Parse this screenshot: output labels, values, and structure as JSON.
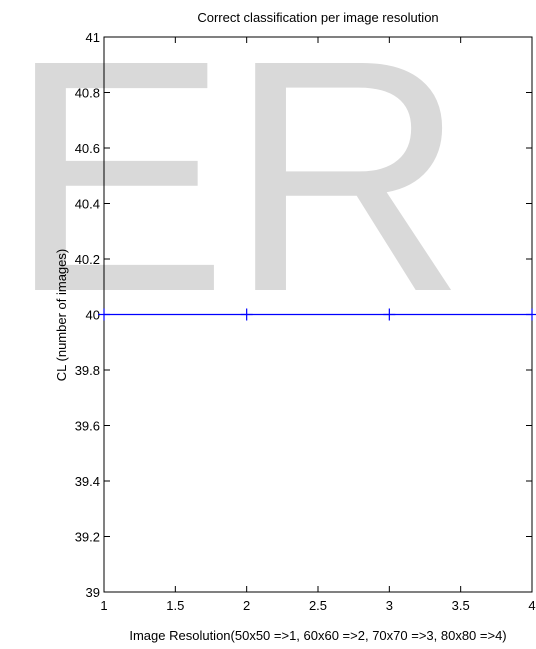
{
  "watermark": "ER",
  "chart_data": {
    "type": "line",
    "title": "Correct classification per image resolution",
    "xlabel": "Image Resolution(50x50 =>1, 60x60 =>2, 70x70 =>3, 80x80 =>4)",
    "ylabel": "CL (number of images)",
    "xlim": [
      1,
      4
    ],
    "ylim": [
      39,
      41
    ],
    "xticks": [
      1,
      1.5,
      2,
      2.5,
      3,
      3.5,
      4
    ],
    "xtick_labels": [
      "1",
      "1.5",
      "2",
      "2.5",
      "3",
      "3.5",
      "4"
    ],
    "yticks": [
      39,
      39.2,
      39.4,
      39.6,
      39.8,
      40,
      40.2,
      40.4,
      40.6,
      40.8,
      41
    ],
    "ytick_labels": [
      "39",
      "39.2",
      "39.4",
      "39.6",
      "39.8",
      "40",
      "40.2",
      "40.4",
      "40.6",
      "40.8",
      "41"
    ],
    "grid": false,
    "series": [
      {
        "color": "#0000ff",
        "marker": "+",
        "x": [
          1,
          2,
          3,
          4
        ],
        "y": [
          40,
          40,
          40,
          40
        ]
      }
    ]
  }
}
